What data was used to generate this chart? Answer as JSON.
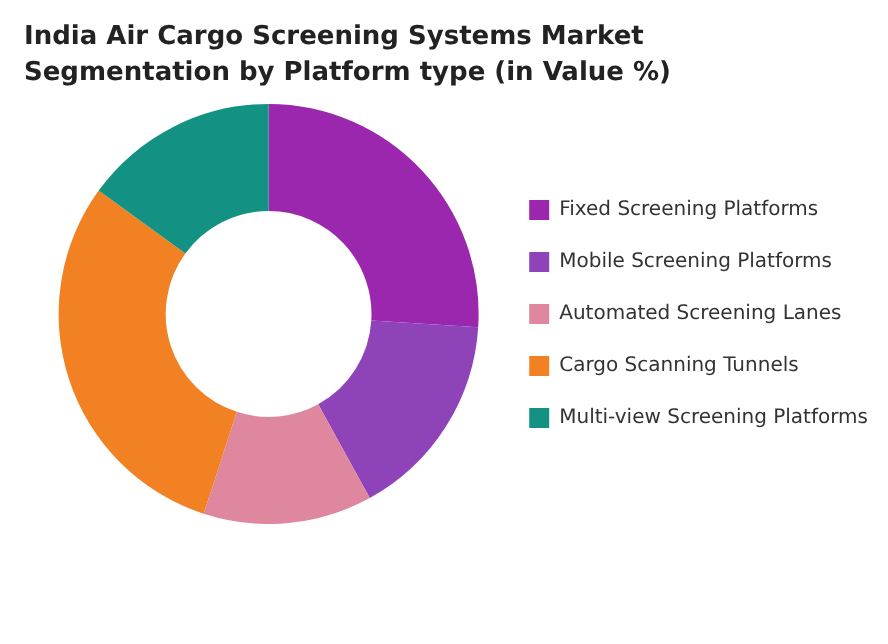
{
  "chart_data": {
    "type": "donut",
    "title": "India Air Cargo Screening Systems Market Segmentation by Platform type (in Value %)",
    "categories": [
      "Fixed Screening Platforms",
      "Mobile Screening Platforms",
      "Automated Screening Lanes",
      "Cargo Scanning Tunnels",
      "Multi-view Screening Platforms"
    ],
    "values": [
      26,
      16,
      13,
      30,
      15
    ],
    "colors": [
      "#9b27af",
      "#8e44b8",
      "#df879f",
      "#f28124",
      "#139183"
    ],
    "legend": "right"
  }
}
